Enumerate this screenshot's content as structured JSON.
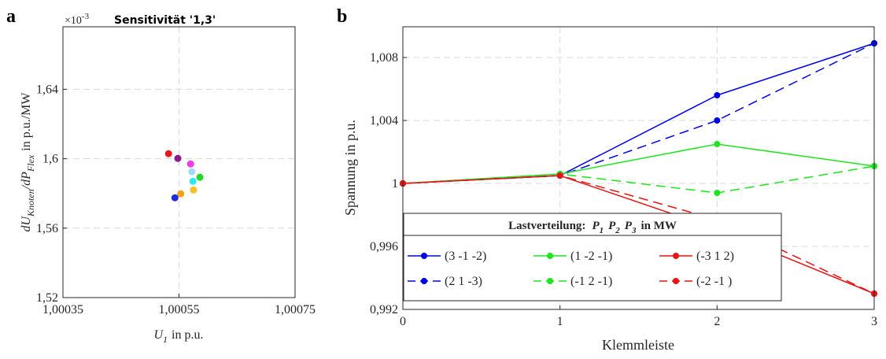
{
  "chart_data": [
    {
      "type": "scatter",
      "panel_label": "a",
      "title": "Sensitivität '1,3'",
      "y_multiplier_parts": [
        "×10",
        "-3"
      ],
      "x_label_parts": [
        "U",
        "1",
        "in p.u."
      ],
      "y_label_parts": [
        "dU",
        "Knoten",
        "/dP",
        "Flex",
        "in p.u./MW"
      ],
      "x": [
        1.000532,
        1.000548,
        1.00057,
        1.000572,
        1.000586,
        1.000574,
        1.000575,
        1.000553,
        1.000543
      ],
      "values": [
        1.6029,
        1.6002,
        1.597,
        1.5925,
        1.5893,
        1.587,
        1.582,
        1.5798,
        1.5775
      ],
      "colors": [
        "#e8191e",
        "#8b1a8b",
        "#f03ce6",
        "#a6d8f5",
        "#22d822",
        "#2ee8f2",
        "#f7c21f",
        "#f7a21a",
        "#1f2bd4"
      ],
      "xlim": [
        1.00035,
        1.00075
      ],
      "ylim": [
        1.52,
        1.676
      ],
      "xticks": [
        {
          "value": 1.00035,
          "label": "1,00035"
        },
        {
          "value": 1.00055,
          "label": "1,00055"
        },
        {
          "value": 1.00075,
          "label": "1,00075"
        }
      ],
      "yticks": [
        {
          "value": 1.52,
          "label": "1,52"
        },
        {
          "value": 1.56,
          "label": "1,56"
        },
        {
          "value": 1.6,
          "label": "1,6"
        },
        {
          "value": 1.64,
          "label": "1,64"
        }
      ],
      "grid": true
    },
    {
      "type": "line",
      "panel_label": "b",
      "x_label": "Klemmleiste",
      "y_label": "Spannung in p.u.",
      "legend_title_parts": [
        "Lastverteilung:",
        "P",
        "1",
        "P",
        "2",
        "P",
        "3",
        "in MW"
      ],
      "x": [
        0,
        1,
        2,
        3
      ],
      "series": [
        {
          "name": "(3 -1 -2)",
          "color": "#0000e6",
          "dash": false,
          "values": [
            1,
            1.0005,
            1.0056,
            1.0089
          ]
        },
        {
          "name": "(2 1 -3)",
          "color": "#0000e6",
          "dash": true,
          "values": [
            1,
            1.0005,
            1.004,
            1.0089
          ]
        },
        {
          "name": "(1 -2 -1)",
          "color": "#1ee61e",
          "dash": false,
          "values": [
            1,
            1.0006,
            1.0025,
            1.0011
          ]
        },
        {
          "name": "(-1 2 -1)",
          "color": "#1ee61e",
          "dash": true,
          "values": [
            1,
            1.0006,
            0.9994,
            1.0011
          ]
        },
        {
          "name": "(-3 1 2)",
          "color": "#e61414",
          "dash": false,
          "values": [
            1,
            1.0005,
            0.9971,
            0.993
          ]
        },
        {
          "name": "(-2 -1 )",
          "color": "#e61414",
          "dash": true,
          "values": [
            1,
            1.0005,
            0.9977,
            0.993
          ]
        }
      ],
      "xlim": [
        0,
        3
      ],
      "ylim": [
        0.992,
        1.00995
      ],
      "xticks": [
        0,
        1,
        2,
        3
      ],
      "yticks": [
        {
          "value": 0.992,
          "label": "0,992"
        },
        {
          "value": 0.996,
          "label": "0,996"
        },
        1,
        {
          "value": 1.004,
          "label": "1,004"
        },
        {
          "value": 1.008,
          "label": "1,008"
        }
      ],
      "grid": true
    }
  ]
}
